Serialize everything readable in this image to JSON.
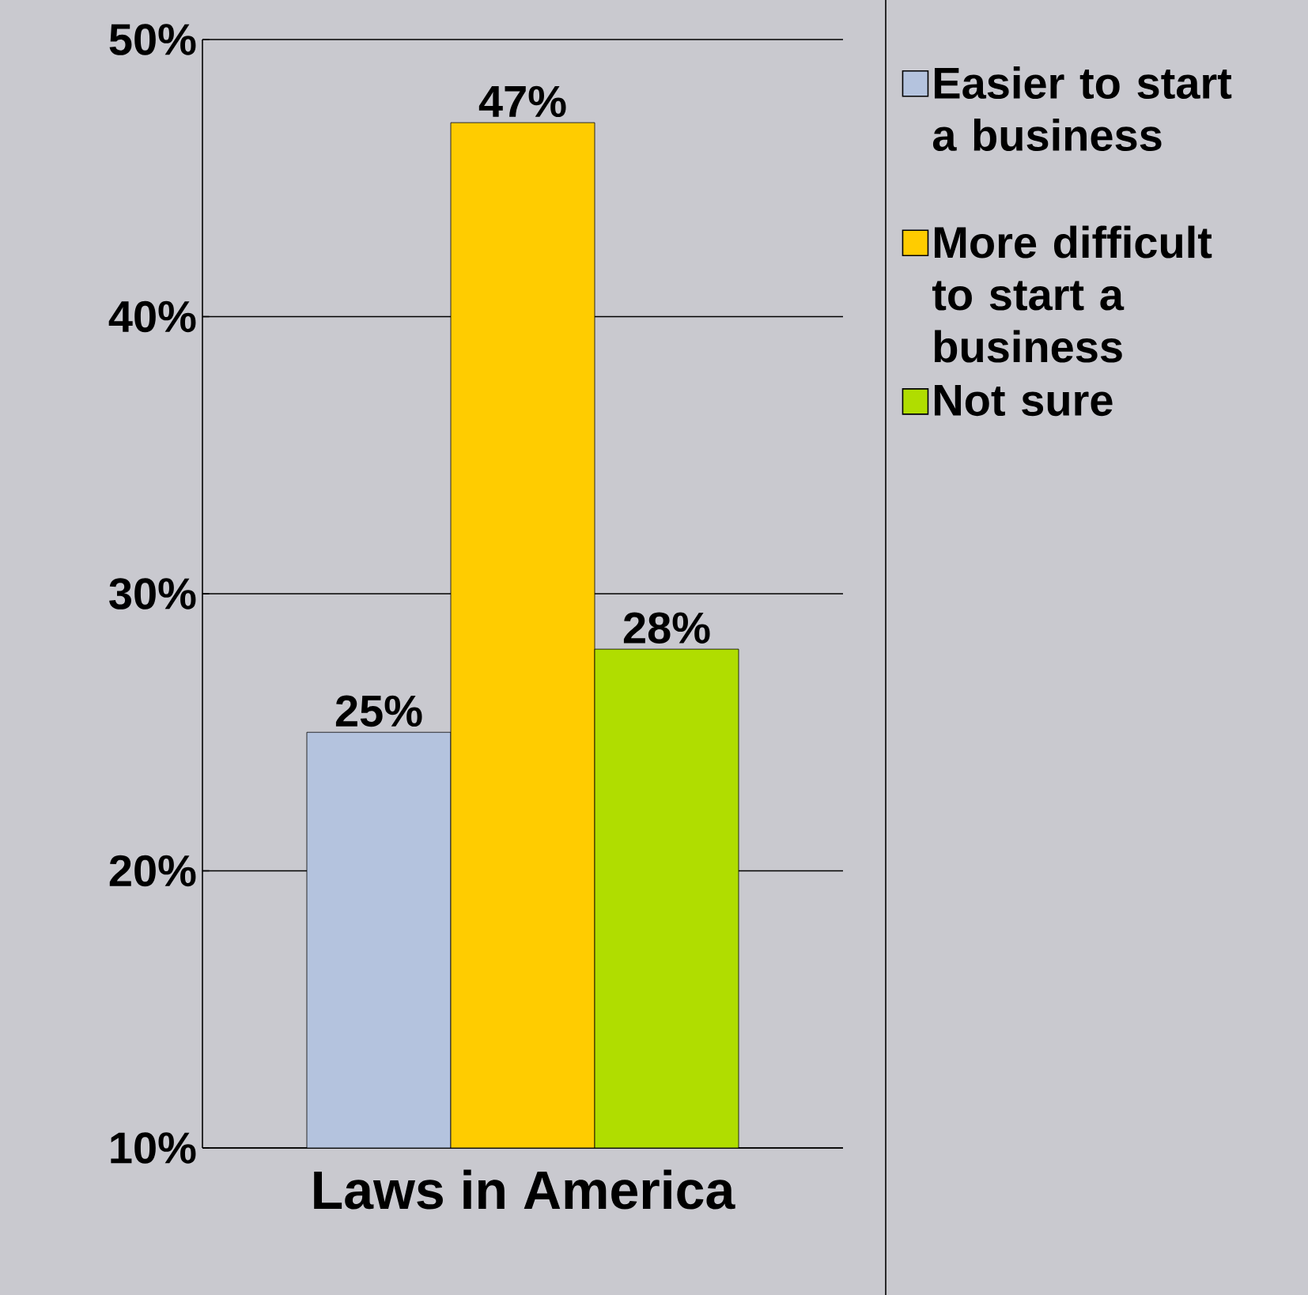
{
  "chart_data": {
    "type": "bar",
    "categories": [
      "Laws in America"
    ],
    "series": [
      {
        "name": "Easier to start a business",
        "color": "#b4c3de",
        "values": [
          25
        ],
        "value_labels": [
          "25%"
        ]
      },
      {
        "name": "More difficult to start a business",
        "color": "#ffcc00",
        "values": [
          47
        ],
        "value_labels": [
          "47%"
        ]
      },
      {
        "name": "Not sure",
        "color": "#b0dd00",
        "values": [
          28
        ],
        "value_labels": [
          "28%"
        ]
      }
    ],
    "ylim": [
      10,
      50
    ],
    "yticks": [
      {
        "value": 10,
        "label": "10%"
      },
      {
        "value": 20,
        "label": "20%"
      },
      {
        "value": 30,
        "label": "30%"
      },
      {
        "value": 40,
        "label": "40%"
      },
      {
        "value": 50,
        "label": "50%"
      }
    ],
    "grid": "y",
    "legend": "right"
  }
}
